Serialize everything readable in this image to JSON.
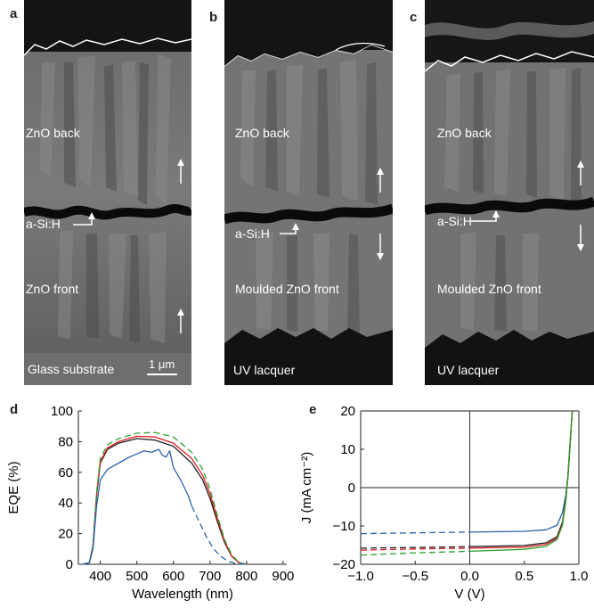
{
  "panels": {
    "a": {
      "letter": "a",
      "labels": {
        "back": "ZnO back",
        "asi": "a-Si:H",
        "front": "ZnO front",
        "substrate": "Glass substrate",
        "scale": "1 μm"
      }
    },
    "b": {
      "letter": "b",
      "labels": {
        "back": "ZnO back",
        "asi": "a-Si:H",
        "front": "Moulded ZnO front",
        "substrate": "UV lacquer"
      }
    },
    "c": {
      "letter": "c",
      "labels": {
        "back": "ZnO back",
        "asi": "a-Si:H",
        "front": "Moulded ZnO front",
        "substrate": "UV lacquer"
      }
    }
  },
  "colors": {
    "black": "#231f20",
    "red": "#e31b23",
    "green": "#2ca02c",
    "blue": "#2b62ad",
    "sem_bg": "#5a5a5a"
  },
  "chart_data": [
    {
      "panel": "d",
      "type": "line",
      "xlabel": "Wavelength (nm)",
      "ylabel": "EQE (%)",
      "xlim": [
        340,
        910
      ],
      "ylim": [
        0,
        100
      ],
      "xticks": [
        400,
        500,
        600,
        700,
        800,
        900
      ],
      "yticks": [
        0,
        20,
        40,
        60,
        80,
        100
      ],
      "series": [
        {
          "color": "#231f20",
          "style": "solid",
          "x": [
            350,
            370,
            380,
            390,
            400,
            420,
            450,
            500,
            550,
            600,
            650,
            680,
            700,
            720,
            740,
            760,
            780,
            800
          ],
          "y": [
            0,
            1,
            12,
            45,
            66,
            75,
            79,
            82,
            81,
            77,
            66,
            55,
            43,
            28,
            14,
            5,
            1,
            0
          ]
        },
        {
          "color": "#e31b23",
          "style": "solid",
          "x": [
            350,
            370,
            380,
            390,
            400,
            420,
            450,
            500,
            550,
            600,
            650,
            680,
            700,
            720,
            740,
            760,
            780,
            800
          ],
          "y": [
            0,
            1,
            12,
            46,
            67,
            76,
            80,
            83.5,
            83,
            79,
            69,
            58,
            46,
            30,
            15,
            5,
            1,
            0
          ]
        },
        {
          "color": "#2ca02c",
          "style": "dashed",
          "x": [
            350,
            370,
            380,
            390,
            400,
            420,
            450,
            500,
            550,
            600,
            650,
            680,
            700,
            720,
            740,
            760,
            780,
            800
          ],
          "y": [
            0,
            1,
            12,
            47,
            69,
            78,
            82,
            85.5,
            86,
            83,
            73,
            62,
            49,
            32,
            16,
            6,
            1,
            0
          ]
        },
        {
          "color": "#2b62ad",
          "style": "solid",
          "x": [
            350,
            370,
            380,
            390,
            400,
            420,
            450,
            480,
            500,
            520,
            540,
            560,
            570,
            580,
            590,
            600,
            620,
            640,
            650
          ],
          "y": [
            0,
            1,
            10,
            38,
            55,
            62,
            66,
            70,
            72,
            74,
            73,
            75,
            71,
            70,
            74,
            63,
            55,
            45,
            38
          ]
        },
        {
          "color": "#2b62ad",
          "style": "dashed",
          "x": [
            650,
            670,
            690,
            710,
            730,
            750,
            770,
            800
          ],
          "y": [
            38,
            28,
            18,
            10,
            5,
            2,
            0.5,
            0
          ]
        }
      ]
    },
    {
      "panel": "e",
      "type": "line",
      "xlabel": "V (V)",
      "ylabel": "J (mA cm⁻²)",
      "xlim": [
        -1.0,
        1.0
      ],
      "ylim": [
        -20,
        20
      ],
      "xticks": [
        -1.0,
        -0.5,
        0.0,
        0.5,
        1.0
      ],
      "xticklabels": [
        "−1.0",
        "−0.5",
        "0.0",
        "0.5",
        "1.0"
      ],
      "yticks": [
        -20,
        -10,
        0,
        10,
        20
      ],
      "yticklabels": [
        "−20",
        "−10",
        "0",
        "10",
        "20"
      ],
      "series": [
        {
          "color": "#2b62ad",
          "style": "dashed",
          "x": [
            -1.0,
            -0.5,
            0.0
          ],
          "y": [
            -12.0,
            -11.8,
            -11.6
          ]
        },
        {
          "color": "#2b62ad",
          "style": "solid",
          "x": [
            0.0,
            0.5,
            0.7,
            0.8,
            0.85,
            0.88,
            0.9,
            0.92,
            0.94
          ],
          "y": [
            -11.6,
            -11.4,
            -11.0,
            -9.8,
            -6.5,
            -2.0,
            3.0,
            11.0,
            20.0
          ]
        },
        {
          "color": "#231f20",
          "style": "dashed",
          "x": [
            -1.0,
            -0.5,
            0.0
          ],
          "y": [
            -15.8,
            -15.6,
            -15.4
          ]
        },
        {
          "color": "#231f20",
          "style": "solid",
          "x": [
            0.0,
            0.5,
            0.7,
            0.8,
            0.85,
            0.88,
            0.9,
            0.92,
            0.94
          ],
          "y": [
            -15.4,
            -15.1,
            -14.4,
            -12.8,
            -9.0,
            -3.0,
            3.5,
            12.0,
            20.0
          ]
        },
        {
          "color": "#e31b23",
          "style": "dashed",
          "x": [
            -1.0,
            -0.5,
            0.0
          ],
          "y": [
            -16.3,
            -16.0,
            -15.8
          ]
        },
        {
          "color": "#e31b23",
          "style": "solid",
          "x": [
            0.0,
            0.5,
            0.7,
            0.8,
            0.85,
            0.88,
            0.9,
            0.92,
            0.94
          ],
          "y": [
            -15.8,
            -15.5,
            -14.8,
            -13.2,
            -9.5,
            -3.5,
            3.0,
            11.5,
            20.0
          ]
        },
        {
          "color": "#2ca02c",
          "style": "dashed",
          "x": [
            -1.0,
            -0.5,
            0.0
          ],
          "y": [
            -17.6,
            -17.0,
            -16.6
          ]
        },
        {
          "color": "#2ca02c",
          "style": "solid",
          "x": [
            0.0,
            0.5,
            0.7,
            0.8,
            0.85,
            0.88,
            0.9,
            0.92,
            0.94
          ],
          "y": [
            -16.6,
            -16.1,
            -15.3,
            -13.5,
            -9.8,
            -3.5,
            3.0,
            11.5,
            20.0
          ]
        }
      ]
    }
  ],
  "plot_letters": {
    "d": "d",
    "e": "e"
  }
}
